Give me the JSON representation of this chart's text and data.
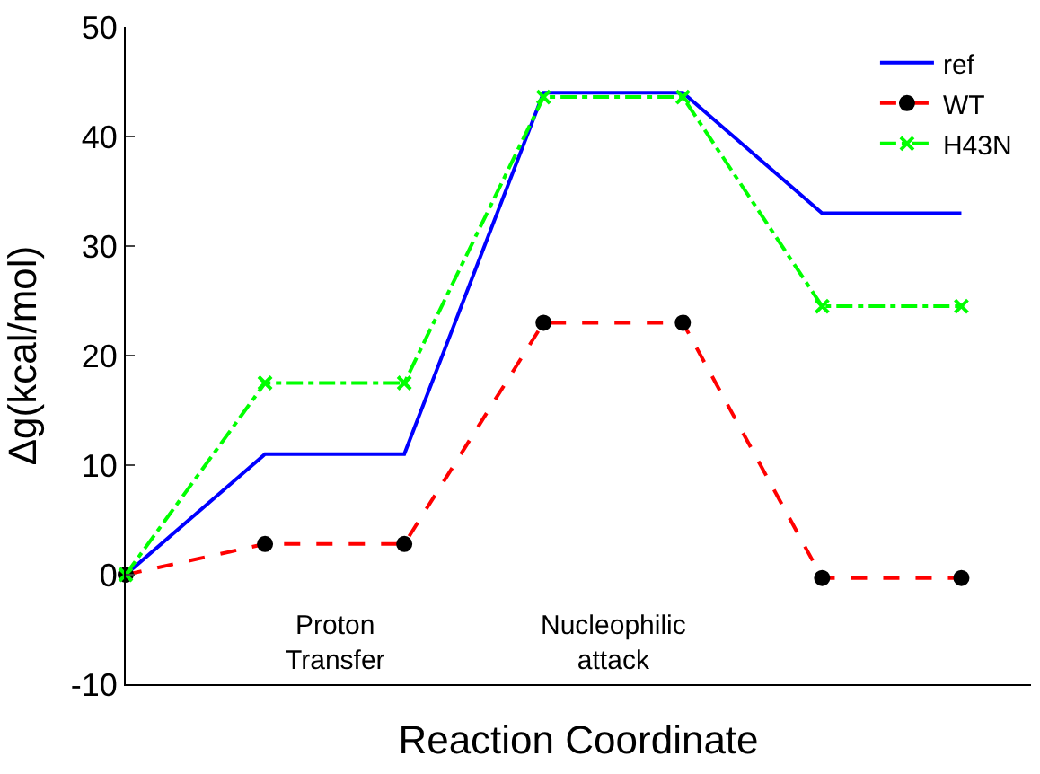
{
  "chart_data": {
    "type": "line",
    "xlabel": "Reaction Coordinate",
    "ylabel": "Δg(kcal/mol)",
    "categories": [
      null,
      null,
      null,
      null,
      null,
      null,
      null
    ],
    "series": [
      {
        "name": "ref",
        "color": "#0000ff",
        "values": [
          0,
          11,
          11,
          44,
          44,
          33,
          33
        ],
        "marker": "none",
        "line_style": "solid"
      },
      {
        "name": "WT",
        "color": "#ff0000",
        "colors": [
          "#000000",
          "#000000",
          "#000000",
          "#000000",
          "#000000",
          "#000000",
          "#000000"
        ],
        "values": [
          0,
          2.8,
          2.8,
          23,
          23,
          -0.3,
          -0.3
        ],
        "marker": "circle",
        "line_style": "dashed"
      },
      {
        "name": "H43N",
        "color": "#00ff00",
        "values": [
          0,
          17.5,
          17.5,
          43.6,
          43.6,
          24.5,
          24.5
        ],
        "marker": "cross",
        "line_style": "dashdot"
      }
    ],
    "ylim": [
      -10,
      50
    ],
    "yticks": [
      -10,
      0,
      10,
      20,
      30,
      40,
      50
    ],
    "legend": "top right",
    "annotations": [
      "Proton\nTransfer",
      "Nucleophilic\nattack"
    ]
  }
}
